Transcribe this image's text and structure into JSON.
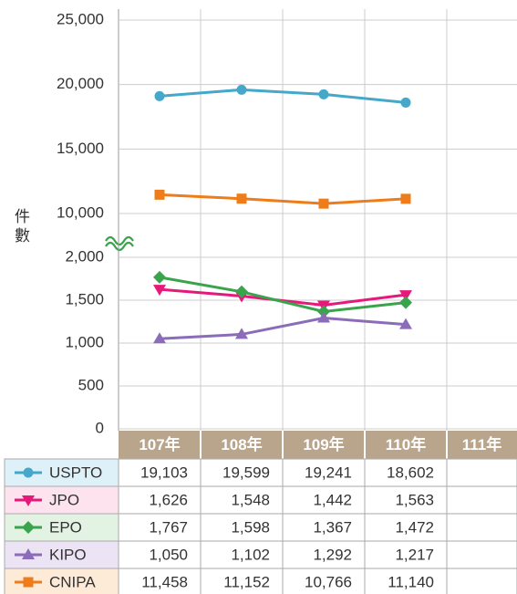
{
  "chart_data": {
    "type": "line",
    "y_label": "件數",
    "categories": [
      "107年",
      "108年",
      "109年",
      "110年",
      "111年"
    ],
    "ylim": [
      0,
      2000
    ],
    "yticks": [
      0,
      500,
      {
        "value": 1000,
        "label": "1,000"
      },
      {
        "value": 1500,
        "label": "1,500"
      },
      {
        "value": 2000,
        "label": "2,000"
      }
    ],
    "y2lim": [
      10000,
      25000
    ],
    "y2ticks": [
      {
        "value": 10000,
        "label": "10,000"
      },
      {
        "value": 15000,
        "label": "15,000"
      },
      {
        "value": 20000,
        "label": "20,000"
      },
      {
        "value": 25000,
        "label": "25,000"
      }
    ],
    "grid": true,
    "series": [
      {
        "name": "USPTO",
        "color": "#45a7c9",
        "marker": "circle",
        "axis": "y2",
        "values": [
          19103,
          19599,
          19241,
          18602,
          null
        ],
        "value_labels": [
          "19,103",
          "19,599",
          "19,241",
          "18,602",
          null
        ]
      },
      {
        "name": "JPO",
        "color": "#e6197b",
        "marker": "down-triangle",
        "values": [
          1626,
          1548,
          1442,
          1563,
          null
        ],
        "value_labels": [
          "1,626",
          "1,548",
          "1,442",
          "1,563",
          null
        ]
      },
      {
        "name": "EPO",
        "color": "#3aa44c",
        "marker": "diamond",
        "values": [
          1767,
          1598,
          1367,
          1472,
          null
        ],
        "value_labels": [
          "1,767",
          "1,598",
          "1,367",
          "1,472",
          null
        ]
      },
      {
        "name": "KIPO",
        "color": "#8b6cb9",
        "marker": "triangle",
        "values": [
          1050,
          1102,
          1292,
          1217,
          null
        ],
        "value_labels": [
          "1,050",
          "1,102",
          "1,292",
          "1,217",
          null
        ]
      },
      {
        "name": "CNIPA",
        "color": "#ee7c1b",
        "marker": "square",
        "axis": "y2",
        "values": [
          11458,
          11152,
          10766,
          11140,
          null
        ],
        "value_labels": [
          "11,458",
          "11,152",
          "10,766",
          "11,140",
          null
        ]
      }
    ]
  }
}
